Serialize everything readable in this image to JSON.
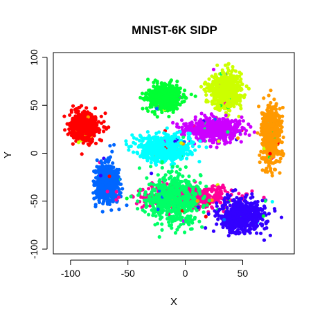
{
  "chart_data": {
    "type": "scatter",
    "title": "MNIST-6K SIDP",
    "xlabel": "X",
    "ylabel": "Y",
    "xlim": [
      -115,
      95
    ],
    "ylim": [
      -105,
      105
    ],
    "x_ticks": [
      -100,
      -50,
      0,
      50
    ],
    "y_ticks": [
      -100,
      -50,
      0,
      50,
      100
    ],
    "x_tick_labels": [
      "-100",
      "-50",
      "0",
      "50"
    ],
    "y_tick_labels": [
      "-100",
      "-50",
      "0",
      "50",
      "100"
    ],
    "grid": false,
    "legend": "none",
    "series": [
      {
        "color": "#ff0000",
        "center": [
          -88,
          28
        ],
        "spread": [
          11,
          13
        ],
        "count": 600
      },
      {
        "color": "#0066ff",
        "center": [
          -68,
          -30
        ],
        "spread": [
          9,
          18
        ],
        "count": 600
      },
      {
        "color": "#00ff33",
        "center": [
          -18,
          58
        ],
        "spread": [
          13,
          12
        ],
        "count": 600
      },
      {
        "color": "#ccff00",
        "center": [
          35,
          65
        ],
        "spread": [
          12,
          17
        ],
        "count": 600
      },
      {
        "color": "#cc00ff",
        "center": [
          25,
          25
        ],
        "spread": [
          22,
          10
        ],
        "count": 600
      },
      {
        "color": "#ff9900",
        "center": [
          75,
          20
        ],
        "spread": [
          7,
          27
        ],
        "count": 600
      },
      {
        "color": "#00ffff",
        "center": [
          -18,
          5
        ],
        "spread": [
          20,
          13
        ],
        "count": 600
      },
      {
        "color": "#ff0099",
        "center": [
          0,
          -45
        ],
        "spread": [
          36,
          10
        ],
        "count": 600
      },
      {
        "color": "#00ff66",
        "center": [
          -10,
          -48
        ],
        "spread": [
          22,
          24
        ],
        "count": 600
      },
      {
        "color": "#3300ff",
        "center": [
          50,
          -65
        ],
        "spread": [
          18,
          15
        ],
        "count": 600
      }
    ]
  }
}
